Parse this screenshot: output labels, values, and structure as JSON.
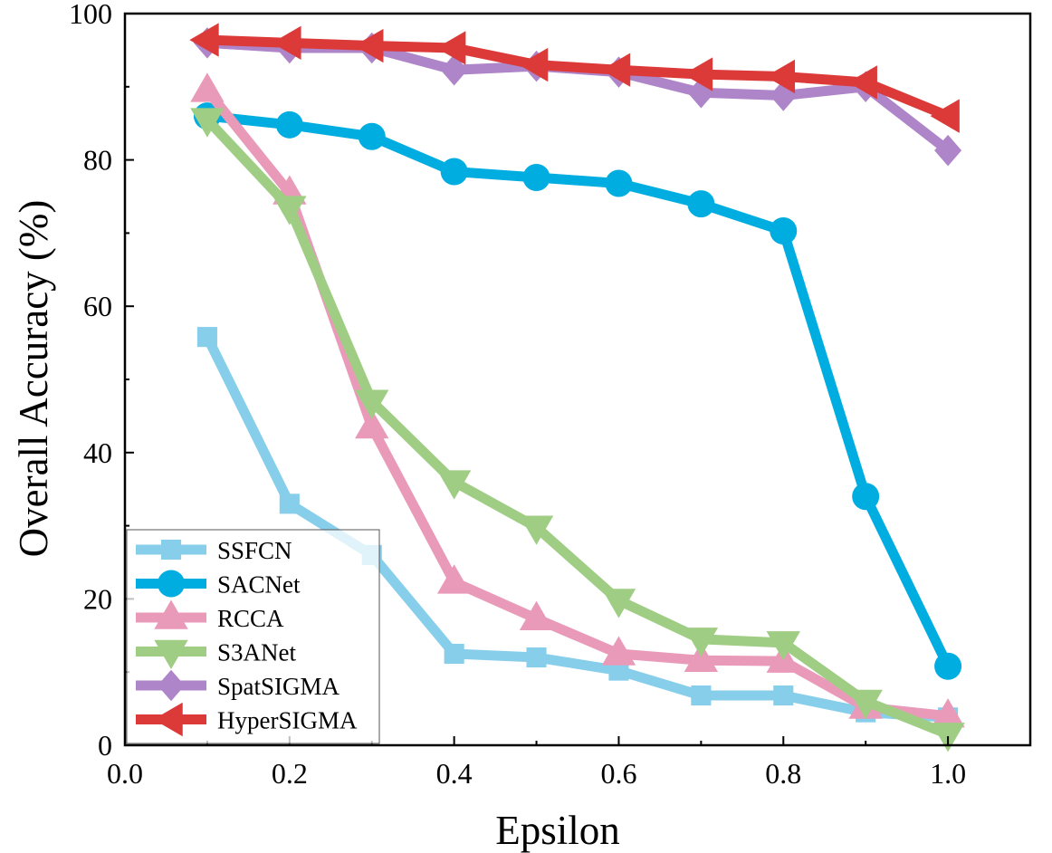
{
  "chart_data": {
    "type": "line",
    "title": "",
    "xlabel": "Epsilon",
    "ylabel": "Overall Accuracy (%)",
    "xlim": [
      0.0,
      1.1
    ],
    "ylim": [
      0,
      100
    ],
    "xticks": [
      "0.0",
      "0.2",
      "0.4",
      "0.6",
      "0.8",
      "1.0"
    ],
    "yticks": [
      "0",
      "20",
      "40",
      "60",
      "80",
      "100"
    ],
    "grid": false,
    "legend_position": "bottom-left",
    "x": [
      0.1,
      0.2,
      0.3,
      0.4,
      0.5,
      0.6,
      0.7,
      0.8,
      0.9,
      1.0
    ],
    "series": [
      {
        "name": "SSFCN",
        "color": "#87CEEB",
        "marker": "square",
        "values": [
          55.8,
          33.0,
          26.0,
          12.5,
          12.0,
          10.2,
          6.8,
          6.8,
          4.5,
          3.8
        ]
      },
      {
        "name": "SACNet",
        "color": "#00ADE0",
        "marker": "circle",
        "values": [
          86.0,
          84.8,
          83.2,
          78.4,
          77.6,
          76.8,
          74.0,
          70.3,
          34.0,
          10.8
        ]
      },
      {
        "name": "RCCA",
        "color": "#E99AB8",
        "marker": "triangle-up",
        "values": [
          89.5,
          75.5,
          43.5,
          22.3,
          17.3,
          12.5,
          11.6,
          11.5,
          5.2,
          4.0
        ]
      },
      {
        "name": "S3ANet",
        "color": "#A0CD84",
        "marker": "triangle-down",
        "values": [
          85.5,
          73.5,
          47.0,
          36.0,
          29.8,
          19.8,
          14.5,
          14.0,
          6.0,
          1.5
        ]
      },
      {
        "name": "SpatSIGMA",
        "color": "#AE85C8",
        "marker": "diamond",
        "values": [
          96.0,
          95.3,
          95.3,
          92.3,
          92.8,
          92.0,
          89.2,
          88.8,
          90.0,
          81.3
        ]
      },
      {
        "name": "HyperSIGMA",
        "color": "#DB3A39",
        "marker": "triangle-left",
        "values": [
          96.4,
          96.0,
          95.6,
          95.3,
          93.0,
          92.3,
          91.7,
          91.4,
          90.6,
          86.0
        ]
      }
    ]
  }
}
